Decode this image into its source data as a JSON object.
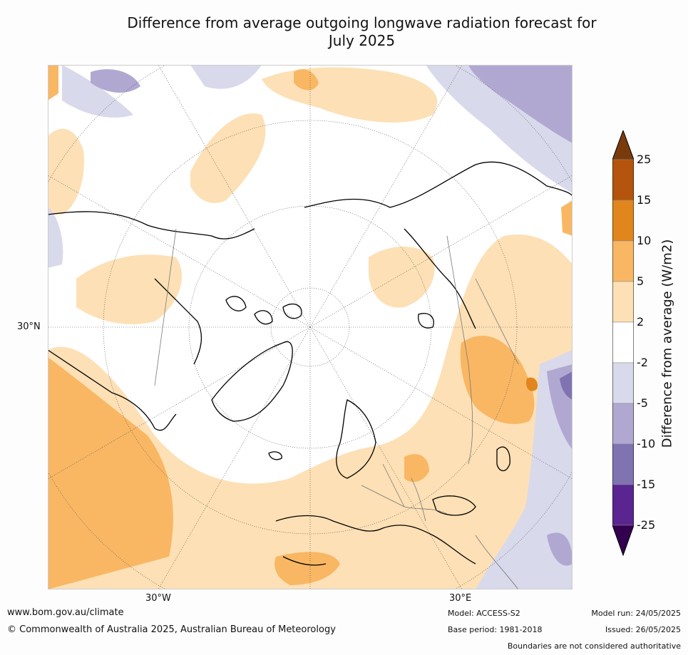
{
  "title_line1": "Difference from average outgoing longwave radiation forecast for",
  "title_line2": "July 2025",
  "axis": {
    "lat_label": "30°N",
    "lon_w_label": "30°W",
    "lon_e_label": "30°E"
  },
  "colorbar": {
    "title": "Difference from average (W/m2)",
    "ticks": [
      "25",
      "15",
      "10",
      "5",
      "2",
      "-2",
      "-5",
      "-10",
      "-15",
      "-25"
    ],
    "colors": [
      "#7a3b0c",
      "#b5540c",
      "#e0861c",
      "#f9b764",
      "#fde0b5",
      "#ffffff",
      "#d9d9ec",
      "#b1a8d2",
      "#8073b1",
      "#5a2591",
      "#33004f"
    ]
  },
  "footer": {
    "website": "www.bom.gov.au/climate",
    "copyright": "© Commonwealth of Australia 2025, Australian Bureau of Meteorology",
    "model": "Model: ACCESS-S2",
    "base_period": "Base period: 1981-2018",
    "model_run": "Model run: 24/05/2025",
    "issued": "Issued: 26/05/2025",
    "disclaimer": "Boundaries are not considered authoritative"
  }
}
